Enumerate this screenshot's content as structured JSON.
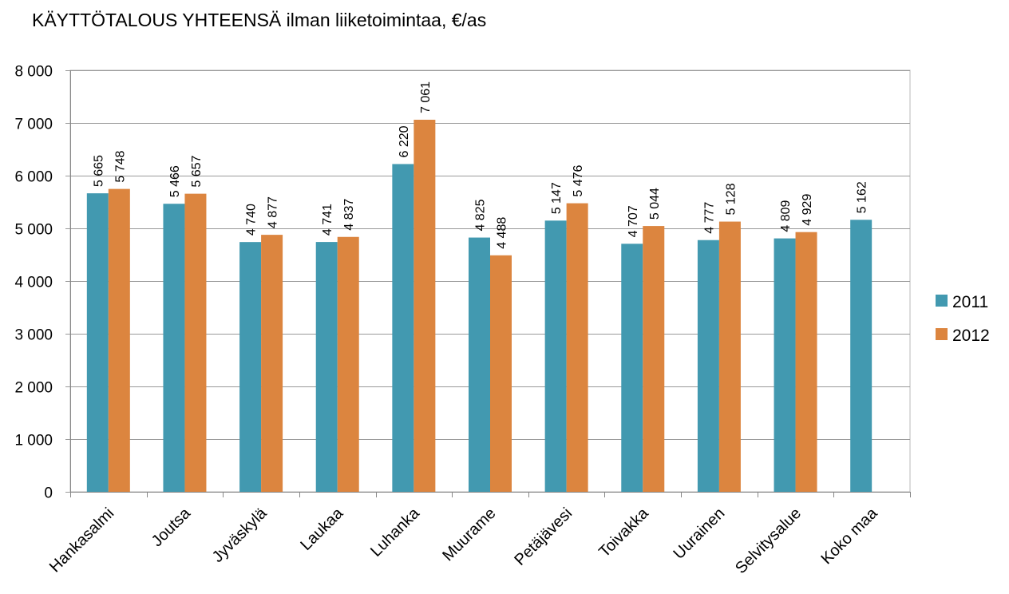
{
  "chart_data": {
    "type": "bar",
    "title": "KÄYTTÖTALOUS YHTEENSÄ ilman liiketoimintaa, €/as",
    "xlabel": "",
    "ylabel": "",
    "ylim": [
      0,
      8000
    ],
    "yticks": [
      0,
      1000,
      2000,
      3000,
      4000,
      5000,
      6000,
      7000,
      8000
    ],
    "ytick_labels": [
      "0",
      "1 000",
      "2 000",
      "3 000",
      "4 000",
      "5 000",
      "6 000",
      "7 000",
      "8 000"
    ],
    "grid": true,
    "legend_position": "right",
    "categories": [
      "Hankasalmi",
      "Joutsa",
      "Jyväskylä",
      "Laukaa",
      "Luhanka",
      "Muurame",
      "Petäjävesi",
      "Toivakka",
      "Uurainen",
      "Selvitysalue",
      "Koko maa"
    ],
    "series": [
      {
        "name": "2011",
        "color": "#4299B0",
        "values": [
          5665,
          5466,
          4740,
          4741,
          6220,
          4825,
          5147,
          4707,
          4777,
          4809,
          5162
        ],
        "labels": [
          "5 665",
          "5 466",
          "4 740",
          "4 741",
          "6 220",
          "4 825",
          "5 147",
          "4 707",
          "4 777",
          "4 809",
          "5 162"
        ]
      },
      {
        "name": "2012",
        "color": "#DC853F",
        "values": [
          5748,
          5657,
          4877,
          4837,
          7061,
          4488,
          5476,
          5044,
          5128,
          4929,
          null
        ],
        "labels": [
          "5 748",
          "5 657",
          "4 877",
          "4 837",
          "7 061",
          "4 488",
          "5 476",
          "5 044",
          "5 128",
          "4 929",
          null
        ]
      }
    ]
  }
}
